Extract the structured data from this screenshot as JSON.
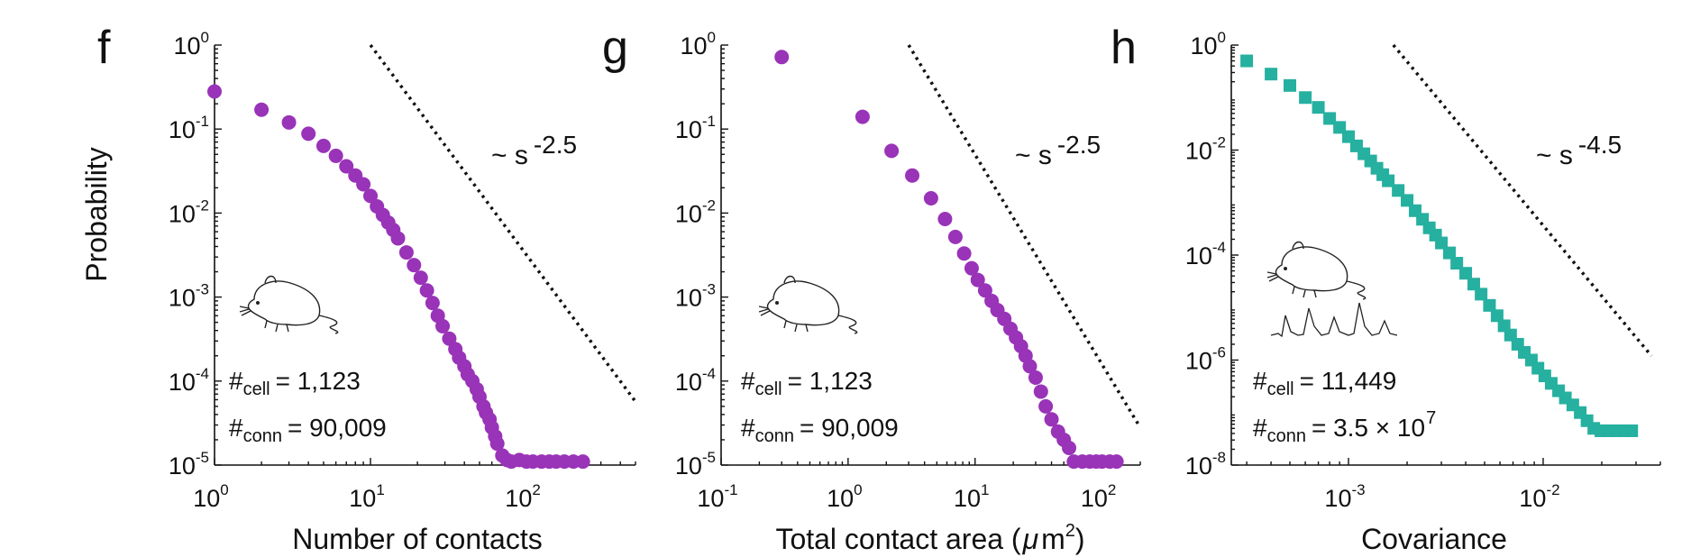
{
  "ylabel": "Probability",
  "chart_data": [
    {
      "type": "scatter",
      "panel": "f",
      "xlabel": "Number of contacts",
      "xscale": "log",
      "yscale": "log",
      "xlim": [
        1,
        500
      ],
      "ylim": [
        1e-05,
        1
      ],
      "xticks": [
        1,
        10,
        100
      ],
      "yticks": [
        1e-05,
        0.0001,
        0.001,
        0.01,
        0.1,
        1
      ],
      "marker": "circle",
      "color": "#9933b8",
      "annotation": {
        "base": "~ s",
        "exponent": "-2.5"
      },
      "stats": [
        {
          "prefix": "#",
          "sub": "cell",
          "value": "= 1,123"
        },
        {
          "prefix": "#",
          "sub": "conn",
          "value": "= 90,009"
        }
      ],
      "reference_line": {
        "x": [
          10,
          500
        ],
        "y": [
          1,
          5.7e-05
        ]
      },
      "x": [
        1,
        2,
        3,
        4,
        5,
        6,
        7,
        8,
        9,
        10,
        11,
        12,
        13,
        14,
        15,
        17,
        19,
        21,
        23,
        25,
        27,
        29,
        32,
        35,
        37,
        40,
        42,
        45,
        48,
        50,
        53,
        55,
        58,
        60,
        63,
        65,
        70,
        75,
        80,
        90,
        100,
        110,
        125,
        140,
        155,
        175,
        200,
        230
      ],
      "y": [
        0.28,
        0.17,
        0.12,
        0.088,
        0.063,
        0.048,
        0.036,
        0.028,
        0.022,
        0.016,
        0.012,
        0.0095,
        0.0077,
        0.0063,
        0.005,
        0.0034,
        0.0024,
        0.0017,
        0.0012,
        0.00085,
        0.0006,
        0.00045,
        0.00032,
        0.00024,
        0.00019,
        0.00015,
        0.00012,
        0.0001,
        8e-05,
        6.5e-05,
        5e-05,
        4.2e-05,
        3.5e-05,
        2.8e-05,
        2.2e-05,
        1.8e-05,
        1.3e-05,
        1.15e-05,
        1.1e-05,
        1.15e-05,
        1.1e-05,
        1.1e-05,
        1.1e-05,
        1.1e-05,
        1.1e-05,
        1.1e-05,
        1.1e-05,
        1.1e-05
      ]
    },
    {
      "type": "scatter",
      "panel": "g",
      "xlabel": "Total contact area (μm²)",
      "xlabel_main": "Total contact area (",
      "xlabel_mu": "μ",
      "xlabel_m": "m",
      "xlabel_sup": "2",
      "xlabel_close": ")",
      "xscale": "log",
      "yscale": "log",
      "xlim": [
        0.1,
        200
      ],
      "ylim": [
        1e-05,
        1
      ],
      "xticks": [
        0.1,
        1,
        10,
        100
      ],
      "yticks": [
        1e-05,
        0.0001,
        0.001,
        0.01,
        0.1,
        1
      ],
      "marker": "circle",
      "color": "#9933b8",
      "annotation": {
        "base": "~ s",
        "exponent": "-2.5"
      },
      "stats": [
        {
          "prefix": "#",
          "sub": "cell",
          "value": "= 1,123"
        },
        {
          "prefix": "#",
          "sub": "conn",
          "value": "= 90,009"
        }
      ],
      "reference_line": {
        "x": [
          3,
          200
        ],
        "y": [
          1,
          2.8e-05
        ]
      },
      "x": [
        0.3,
        1.3,
        2.2,
        3.2,
        4.5,
        5.8,
        7,
        8.2,
        9.4,
        10.5,
        12,
        13.5,
        15,
        17,
        19,
        21,
        23,
        25,
        27,
        30,
        33,
        36,
        40,
        45,
        50,
        55,
        60,
        70,
        80,
        90,
        100,
        115,
        130
      ],
      "y": [
        0.72,
        0.14,
        0.055,
        0.028,
        0.015,
        0.0085,
        0.0052,
        0.0033,
        0.0022,
        0.0016,
        0.0012,
        0.0009,
        0.0007,
        0.00055,
        0.00042,
        0.00033,
        0.00026,
        0.0002,
        0.00015,
        0.00011,
        7.5e-05,
        5e-05,
        3.5e-05,
        2.5e-05,
        2e-05,
        1.6e-05,
        1.1e-05,
        1.1e-05,
        1.1e-05,
        1.1e-05,
        1.1e-05,
        1.1e-05,
        1.1e-05
      ]
    },
    {
      "type": "scatter",
      "panel": "h",
      "xlabel": "Covariance",
      "xscale": "log",
      "yscale": "log",
      "xlim": [
        0.00025,
        0.04
      ],
      "ylim": [
        1e-08,
        1
      ],
      "xticks": [
        0.001,
        0.01
      ],
      "xtick_labels": [
        {
          "base": "10",
          "exp": "-3"
        },
        {
          "base": "10",
          "exp": "-2"
        }
      ],
      "yticks": [
        1e-08,
        1e-06,
        0.0001,
        0.01,
        1
      ],
      "marker": "square",
      "color": "#26b0a0",
      "annotation": {
        "base": "~ s",
        "exponent": "-4.5"
      },
      "stats": [
        {
          "prefix": "#",
          "sub": "cell",
          "value": "= 11,449"
        },
        {
          "prefix": "#",
          "sub": "conn",
          "value": "= 3.5 × 10",
          "value_exp": "7"
        }
      ],
      "reference_line": {
        "x": [
          0.0017,
          0.036
        ],
        "y": [
          1,
          1.2e-06
        ]
      },
      "x": [
        0.0003,
        0.0004,
        0.0005,
        0.0006,
        0.0007,
        0.0008,
        0.0009,
        0.001,
        0.0011,
        0.0012,
        0.0013,
        0.0014,
        0.0015,
        0.0016,
        0.0018,
        0.002,
        0.0022,
        0.0024,
        0.0026,
        0.0028,
        0.003,
        0.0033,
        0.0036,
        0.004,
        0.0044,
        0.0048,
        0.0053,
        0.0058,
        0.0063,
        0.0068,
        0.0074,
        0.008,
        0.0087,
        0.0094,
        0.0102,
        0.011,
        0.012,
        0.013,
        0.0142,
        0.0155,
        0.0168,
        0.0182,
        0.0198,
        0.0215,
        0.0235,
        0.026,
        0.0285
      ],
      "y": [
        0.5,
        0.28,
        0.17,
        0.1,
        0.065,
        0.04,
        0.027,
        0.018,
        0.012,
        0.0085,
        0.0062,
        0.0045,
        0.0034,
        0.0026,
        0.0017,
        0.0011,
        0.0007,
        0.00048,
        0.00033,
        0.00024,
        0.00017,
        0.00011,
        7e-05,
        4.5e-05,
        2.8e-05,
        1.8e-05,
        1.1e-05,
        7e-06,
        4.5e-06,
        3e-06,
        2e-06,
        1.4e-06,
        1e-06,
        7e-07,
        5e-07,
        3.6e-07,
        2.6e-07,
        1.9e-07,
        1.4e-07,
        1e-07,
        7e-08,
        5e-08,
        4.5e-08,
        4.5e-08,
        4.5e-08,
        4.5e-08,
        4.5e-08
      ]
    }
  ]
}
